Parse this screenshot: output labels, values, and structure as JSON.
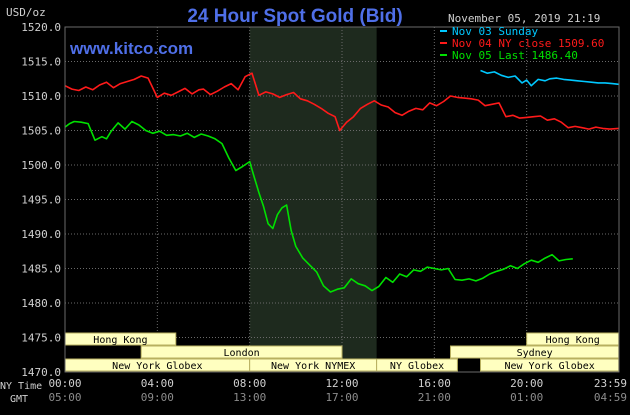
{
  "chart_data": {
    "type": "line",
    "title": "24 Hour Spot Gold (Bid)",
    "watermark": "www.kitco.com",
    "timestamp": "November 05, 2019 21:19",
    "ylabel": "USD/oz",
    "ylim": [
      1470,
      1520
    ],
    "yticks": [
      "1520.0",
      "1515.0",
      "1510.0",
      "1505.0",
      "1500.0",
      "1495.0",
      "1490.0",
      "1485.0",
      "1480.0",
      "1475.0",
      "1470.0"
    ],
    "xlim": [
      0,
      24
    ],
    "xticks": [
      "00:00",
      "04:00",
      "08:00",
      "12:00",
      "16:00",
      "20:00",
      "23:59"
    ],
    "gmt_ticks": [
      "05:00",
      "09:00",
      "13:00",
      "17:00",
      "21:00",
      "01:00",
      "04:59"
    ],
    "row_labels": {
      "ny_time": "NY Time",
      "gmt": "GMT"
    },
    "legend_position": "top-right",
    "shaded_period": [
      8,
      13.5
    ],
    "grid": true,
    "colors": {
      "background": "#000000",
      "grid": "#6a6a6a",
      "title": "#4f6fe8",
      "watermark": "#4f6fe8",
      "text": "#d0d0d0",
      "session_bg": "#ffffc0",
      "session_border": "#b8b060",
      "session_text": "#000000",
      "shade": "#1e2a1e"
    },
    "series": [
      {
        "name": "Nov 03 Sunday",
        "color": "#00c8ff",
        "x": [
          18,
          18.3,
          18.6,
          18.9,
          19.2,
          19.5,
          19.8,
          20.0,
          20.2,
          20.5,
          20.8,
          21.0,
          21.3,
          21.6,
          21.9,
          22.2,
          22.5,
          22.8,
          23.1,
          23.4,
          23.7,
          23.99
        ],
        "y": [
          1513.7,
          1513.3,
          1513.5,
          1513.0,
          1512.7,
          1512.9,
          1511.9,
          1512.3,
          1511.5,
          1512.4,
          1512.2,
          1512.5,
          1512.6,
          1512.4,
          1512.3,
          1512.2,
          1512.1,
          1512.0,
          1511.9,
          1511.9,
          1511.8,
          1511.7
        ]
      },
      {
        "name": "Nov 04 NY close 1509.60",
        "color": "#ff1a1a",
        "x": [
          0,
          0.3,
          0.6,
          0.9,
          1.2,
          1.5,
          1.8,
          2.1,
          2.4,
          2.7,
          3.0,
          3.3,
          3.6,
          4.0,
          4.3,
          4.6,
          4.9,
          5.2,
          5.5,
          5.8,
          6.0,
          6.3,
          6.6,
          6.9,
          7.2,
          7.5,
          7.8,
          8.1,
          8.4,
          8.7,
          9.0,
          9.3,
          9.6,
          9.9,
          10.2,
          10.5,
          10.8,
          11.1,
          11.4,
          11.7,
          11.9,
          12.2,
          12.5,
          12.8,
          13.1,
          13.4,
          13.7,
          14.0,
          14.3,
          14.6,
          14.9,
          15.2,
          15.5,
          15.8,
          16.1,
          16.4,
          16.7,
          17.0,
          17.3,
          17.6,
          17.9,
          18.2,
          18.5,
          18.8,
          19.1,
          19.4,
          19.7,
          20.0,
          20.3,
          20.6,
          20.9,
          21.2,
          21.5,
          21.8,
          22.1,
          22.4,
          22.7,
          23.0,
          23.3,
          23.6,
          23.99
        ],
        "y": [
          1511.5,
          1511.0,
          1510.8,
          1511.3,
          1510.9,
          1511.6,
          1512.0,
          1511.2,
          1511.8,
          1512.1,
          1512.4,
          1512.9,
          1512.6,
          1509.8,
          1510.4,
          1510.1,
          1510.6,
          1511.1,
          1510.3,
          1510.9,
          1511.0,
          1510.2,
          1510.7,
          1511.3,
          1511.8,
          1510.9,
          1512.8,
          1513.3,
          1510.1,
          1510.6,
          1510.3,
          1509.8,
          1510.2,
          1510.5,
          1509.6,
          1509.3,
          1508.8,
          1508.2,
          1507.5,
          1507.0,
          1505.0,
          1506.2,
          1507.0,
          1508.2,
          1508.8,
          1509.3,
          1508.7,
          1508.4,
          1507.6,
          1507.2,
          1507.8,
          1508.2,
          1508.0,
          1509.0,
          1508.6,
          1509.2,
          1510.0,
          1509.8,
          1509.7,
          1509.6,
          1509.4,
          1508.6,
          1508.8,
          1509.0,
          1507.0,
          1507.2,
          1506.8,
          1506.9,
          1507.0,
          1507.1,
          1506.5,
          1506.7,
          1506.2,
          1505.4,
          1505.6,
          1505.4,
          1505.2,
          1505.5,
          1505.3,
          1505.2,
          1505.3
        ]
      },
      {
        "name": "Nov 05 Last 1486.40",
        "color": "#00e000",
        "x": [
          0,
          0.2,
          0.4,
          0.7,
          1.0,
          1.3,
          1.6,
          1.8,
          2.0,
          2.3,
          2.6,
          2.9,
          3.2,
          3.5,
          3.8,
          4.1,
          4.4,
          4.7,
          5.0,
          5.3,
          5.6,
          5.9,
          6.2,
          6.5,
          6.8,
          7.1,
          7.4,
          7.7,
          8.0,
          8.2,
          8.4,
          8.6,
          8.8,
          9.0,
          9.2,
          9.4,
          9.6,
          9.8,
          10.0,
          10.3,
          10.6,
          10.9,
          11.2,
          11.5,
          11.8,
          12.1,
          12.4,
          12.7,
          13.0,
          13.3,
          13.6,
          13.9,
          14.2,
          14.5,
          14.8,
          15.1,
          15.4,
          15.7,
          16.0,
          16.3,
          16.6,
          16.9,
          17.2,
          17.5,
          17.8,
          18.1,
          18.4,
          18.7,
          19.0,
          19.3,
          19.6,
          19.9,
          20.2,
          20.5,
          20.8,
          21.1,
          21.4,
          21.7,
          22.0
        ],
        "y": [
          1505.5,
          1506.0,
          1506.3,
          1506.2,
          1506.0,
          1503.6,
          1504.1,
          1503.8,
          1504.9,
          1506.1,
          1505.2,
          1506.3,
          1505.8,
          1505.0,
          1504.6,
          1504.9,
          1504.3,
          1504.4,
          1504.2,
          1504.6,
          1504.0,
          1504.5,
          1504.2,
          1503.8,
          1503.1,
          1501.0,
          1499.2,
          1499.8,
          1500.5,
          1498.2,
          1496.0,
          1494.0,
          1491.5,
          1490.8,
          1492.8,
          1493.8,
          1494.2,
          1490.5,
          1488.2,
          1486.5,
          1485.5,
          1484.5,
          1482.5,
          1481.6,
          1482.0,
          1482.2,
          1483.5,
          1482.8,
          1482.5,
          1481.8,
          1482.4,
          1483.7,
          1483.0,
          1484.2,
          1483.8,
          1484.8,
          1484.6,
          1485.2,
          1485.0,
          1484.8,
          1485.0,
          1483.4,
          1483.3,
          1483.5,
          1483.2,
          1483.6,
          1484.2,
          1484.6,
          1484.9,
          1485.4,
          1485.0,
          1485.7,
          1486.2,
          1485.9,
          1486.5,
          1487.0,
          1486.1,
          1486.3,
          1486.4
        ]
      }
    ],
    "sessions": [
      {
        "label": "Hong Kong",
        "start": 0,
        "end": 4.8,
        "row": 0
      },
      {
        "label": "Hong Kong",
        "start": 20.0,
        "end": 23.99,
        "row": 0
      },
      {
        "label": "London",
        "start": 3.3,
        "end": 12.0,
        "row": 1
      },
      {
        "label": "Sydney",
        "start": 16.7,
        "end": 23.99,
        "row": 1
      },
      {
        "label": "New York Globex",
        "start": 0,
        "end": 8.0,
        "row": 2
      },
      {
        "label": "New York NYMEX",
        "start": 8.0,
        "end": 13.5,
        "row": 2
      },
      {
        "label": "NY Globex",
        "start": 13.5,
        "end": 17.0,
        "row": 2
      },
      {
        "label": "New York Globex",
        "start": 18.0,
        "end": 23.99,
        "row": 2
      }
    ]
  }
}
